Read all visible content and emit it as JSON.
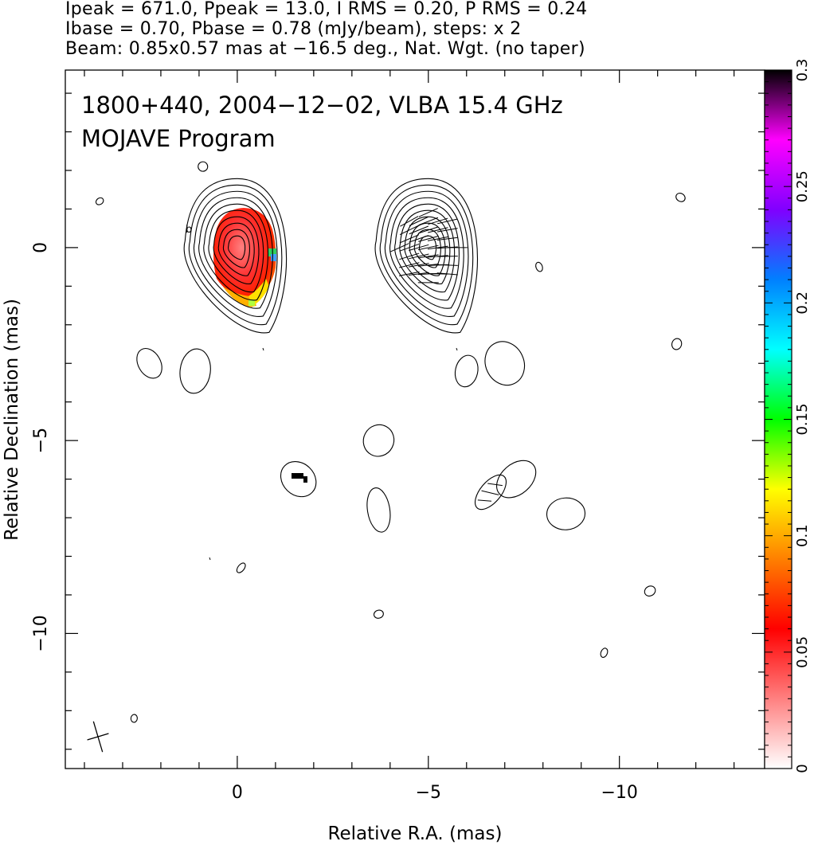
{
  "header": {
    "line1": "Ipeak = 671.0, Ppeak = 13.0, I RMS = 0.20, P RMS = 0.24",
    "line2": "Ibase = 0.70, Pbase = 0.78 (mJy/beam), steps: x 2",
    "line3": "Beam: 0.85x0.57 mas at −16.5 deg., Nat. Wgt. (no taper)"
  },
  "chart_data": {
    "type": "heatmap",
    "title_line1": "1800+440, 2004−12−02, VLBA 15.4 GHz",
    "title_line2": "MOJAVE Program",
    "xlabel": "Relative R.A. (mas)",
    "ylabel": "Relative Declination (mas)",
    "xlim": [
      4.5,
      -13.8
    ],
    "ylim": [
      -13.5,
      4.6
    ],
    "x_ticks": [
      0,
      -5,
      -10
    ],
    "x_tick_labels": [
      "0",
      "−5",
      "−10"
    ],
    "y_ticks": [
      0,
      -5,
      -10
    ],
    "y_tick_labels": [
      "0",
      "−5",
      "−10"
    ],
    "panels": [
      {
        "name": "total intensity with fractional polarization",
        "center_x": 0
      },
      {
        "name": "total intensity with EVPA sticks",
        "center_x": -5
      }
    ],
    "features": [
      {
        "x": 2.3,
        "y": -3.0,
        "kind": "contour"
      },
      {
        "x": 1.1,
        "y": -3.2,
        "kind": "contour"
      },
      {
        "x": -1.6,
        "y": -6.0,
        "kind": "contour"
      },
      {
        "x": -3.7,
        "y": -6.8,
        "kind": "contour"
      },
      {
        "x": -3.7,
        "y": -5.0,
        "kind": "contour"
      },
      {
        "x": -7.0,
        "y": -3.0,
        "kind": "contour"
      },
      {
        "x": -6.0,
        "y": -3.2,
        "kind": "contour"
      },
      {
        "x": -7.3,
        "y": -6.0,
        "kind": "contour"
      },
      {
        "x": -8.6,
        "y": -6.9,
        "kind": "contour"
      },
      {
        "x": -11.6,
        "y": 1.3,
        "kind": "contour"
      },
      {
        "x": -7.9,
        "y": -0.5,
        "kind": "contour"
      },
      {
        "x": -11.5,
        "y": -2.5,
        "kind": "contour"
      },
      {
        "x": 3.6,
        "y": 1.2,
        "kind": "contour"
      },
      {
        "x": 0.9,
        "y": 2.1,
        "kind": "contour"
      },
      {
        "x": -0.1,
        "y": -8.3,
        "kind": "contour"
      },
      {
        "x": -3.7,
        "y": -9.5,
        "kind": "contour"
      },
      {
        "x": -9.6,
        "y": -10.5,
        "kind": "contour"
      },
      {
        "x": -10.8,
        "y": -8.9,
        "kind": "contour"
      },
      {
        "x": 2.7,
        "y": -12.2,
        "kind": "contour"
      }
    ],
    "colorbar": {
      "quantity": "fractional polarization",
      "range": [
        0,
        0.3
      ],
      "ticks": [
        0,
        0.05,
        0.1,
        0.15,
        0.2,
        0.25,
        0.3
      ],
      "tick_labels": [
        "0",
        "0.05",
        "0.1",
        "0.15",
        "0.2",
        "0.25",
        "0.3"
      ],
      "colors": [
        "#ffffff",
        "#ff8080",
        "#ff0000",
        "#ff8000",
        "#ffff00",
        "#00ff00",
        "#00ffff",
        "#0080ff",
        "#8000ff",
        "#ff00ff",
        "#000000"
      ]
    },
    "beam": {
      "major_mas": 0.85,
      "minor_mas": 0.57,
      "pa_deg": -16.5
    }
  }
}
